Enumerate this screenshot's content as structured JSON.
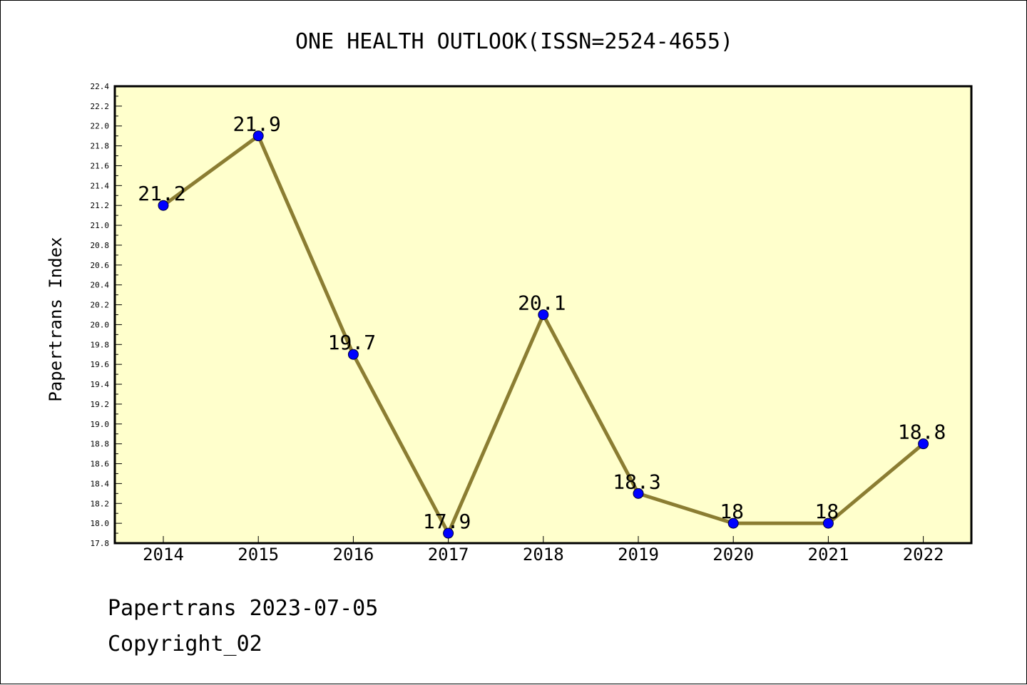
{
  "chart_data": {
    "type": "line",
    "title": "ONE HEALTH OUTLOOK(ISSN=2524-4655)",
    "xlabel": "",
    "ylabel": "Papertrans Index",
    "categories": [
      "2014",
      "2015",
      "2016",
      "2017",
      "2018",
      "2019",
      "2020",
      "2021",
      "2022"
    ],
    "series": [
      {
        "values": [
          21.2,
          21.9,
          19.7,
          17.9,
          20.1,
          18.3,
          18.0,
          18.0,
          18.8
        ],
        "data_labels": [
          "21.2",
          "21.9",
          "19.7",
          "17.9",
          "20.1",
          "18.3",
          "18",
          "18",
          "18.8"
        ]
      }
    ],
    "ylim": [
      17.8,
      22.4
    ],
    "yticks": [
      "17.8",
      "18.0",
      "18.2",
      "18.4",
      "18.6",
      "18.8",
      "19.0",
      "19.2",
      "19.4",
      "19.6",
      "19.8",
      "20.0",
      "20.2",
      "20.4",
      "20.6",
      "20.8",
      "21.0",
      "21.2",
      "21.4",
      "21.6",
      "21.8",
      "22.0",
      "22.2",
      "22.4"
    ],
    "grid": false,
    "legend": "none",
    "colors": {
      "plot_background": "#ffffcc",
      "line": "#8b7d32",
      "marker": "#0000ff"
    }
  },
  "footer": {
    "line1": "Papertrans 2023-07-05",
    "line2": "Copyright_02"
  }
}
